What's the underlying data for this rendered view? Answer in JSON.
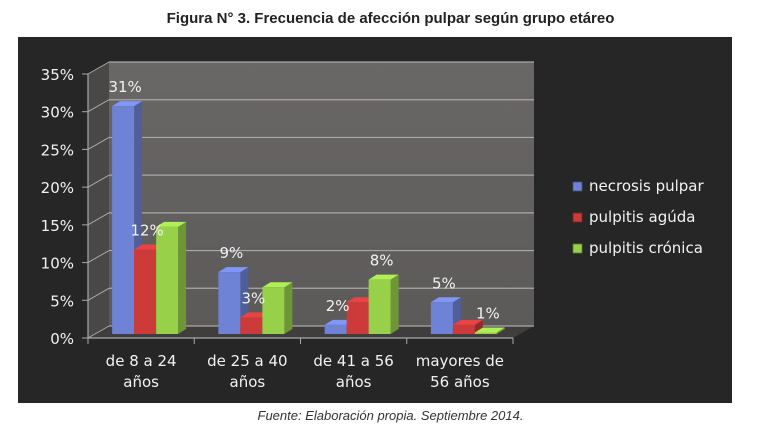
{
  "figure": {
    "title": "Figura N° 3. Frecuencia de afección pulpar según grupo etáreo",
    "source": "Fuente: Elaboración propia. Septiembre 2014."
  },
  "chart_data": {
    "type": "bar",
    "style": "3d-clustered-column",
    "title": "Figura N° 3. Frecuencia de afección pulpar según grupo etáreo",
    "xlabel": "",
    "ylabel": "",
    "ylim": [
      0,
      35
    ],
    "yticks": [
      0,
      5,
      10,
      15,
      20,
      25,
      30,
      35
    ],
    "ytick_labels": [
      "0%",
      "5%",
      "10%",
      "15%",
      "20%",
      "25%",
      "30%",
      "35%"
    ],
    "grid": true,
    "legend_position": "right",
    "categories": [
      [
        "de 8 a 24",
        "años"
      ],
      [
        "de 25 a 40",
        "años"
      ],
      [
        "de 41 a 56",
        "años"
      ],
      [
        "mayores de",
        "56 años"
      ]
    ],
    "series": [
      {
        "name": "necrosis pulpar",
        "color": "#6f83d6",
        "values": [
          31,
          9,
          2,
          5
        ],
        "labels": [
          "31%",
          "9%",
          "2%",
          "5%"
        ]
      },
      {
        "name": "pulpitis agúda",
        "color": "#cc3a3a",
        "values": [
          12,
          3,
          5,
          2
        ],
        "labels": [
          "12%",
          "3%",
          null,
          null
        ]
      },
      {
        "name": "pulpitis crónica",
        "color": "#97d14a",
        "values": [
          15,
          7,
          8,
          1
        ],
        "labels": [
          null,
          null,
          "8%",
          "1%"
        ]
      }
    ]
  }
}
